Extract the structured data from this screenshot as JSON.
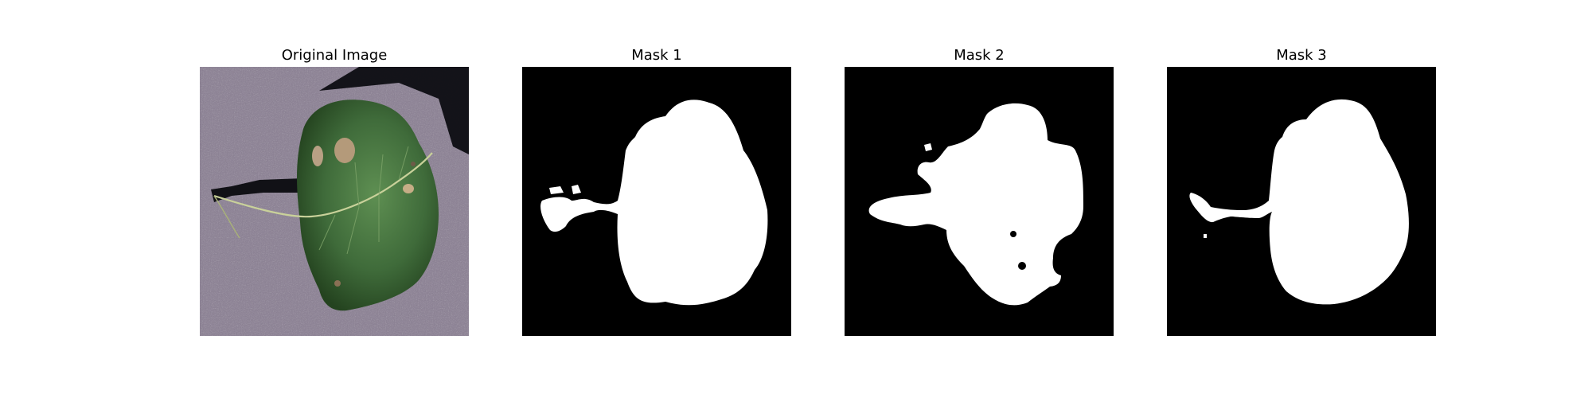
{
  "panels": [
    {
      "title": "Original Image",
      "kind": "photo",
      "subject": "leaf-with-lesions"
    },
    {
      "title": "Mask 1",
      "kind": "binary-mask"
    },
    {
      "title": "Mask 2",
      "kind": "binary-mask"
    },
    {
      "title": "Mask 3",
      "kind": "binary-mask"
    }
  ],
  "colors": {
    "figure_background": "#ffffff",
    "mask_foreground": "#ffffff",
    "mask_background": "#000000",
    "photo_background": "#8f8597",
    "leaf": "#3f6b3a",
    "lesion": "#b49a7a"
  }
}
